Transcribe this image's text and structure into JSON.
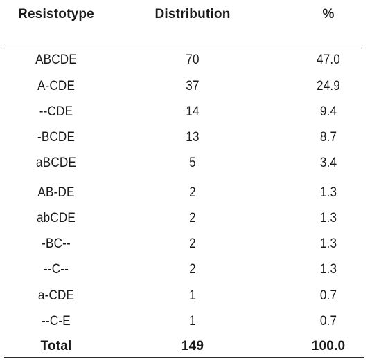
{
  "table": {
    "headers": {
      "resistotype": "Resistotype",
      "distribution": "Distribution",
      "percent": "%"
    },
    "rows": [
      {
        "resistotype": "ABCDE",
        "distribution": "70",
        "percent": "47.0"
      },
      {
        "resistotype": "A-CDE",
        "distribution": "37",
        "percent": "24.9"
      },
      {
        "resistotype": "--CDE",
        "distribution": "14",
        "percent": "9.4"
      },
      {
        "resistotype": "-BCDE",
        "distribution": "13",
        "percent": "8.7"
      },
      {
        "resistotype": "aBCDE",
        "distribution": "5",
        "percent": "3.4"
      },
      {
        "resistotype": "AB-DE",
        "distribution": "2",
        "percent": "1.3"
      },
      {
        "resistotype": "abCDE",
        "distribution": "2",
        "percent": "1.3"
      },
      {
        "resistotype": "-BC--",
        "distribution": "2",
        "percent": "1.3"
      },
      {
        "resistotype": "--C--",
        "distribution": "2",
        "percent": "1.3"
      },
      {
        "resistotype": "a-CDE",
        "distribution": "1",
        "percent": "0.7"
      },
      {
        "resistotype": "--C-E",
        "distribution": "1",
        "percent": "0.7"
      }
    ],
    "total": {
      "resistotype": "Total",
      "distribution": "149",
      "percent": "100.0"
    }
  }
}
